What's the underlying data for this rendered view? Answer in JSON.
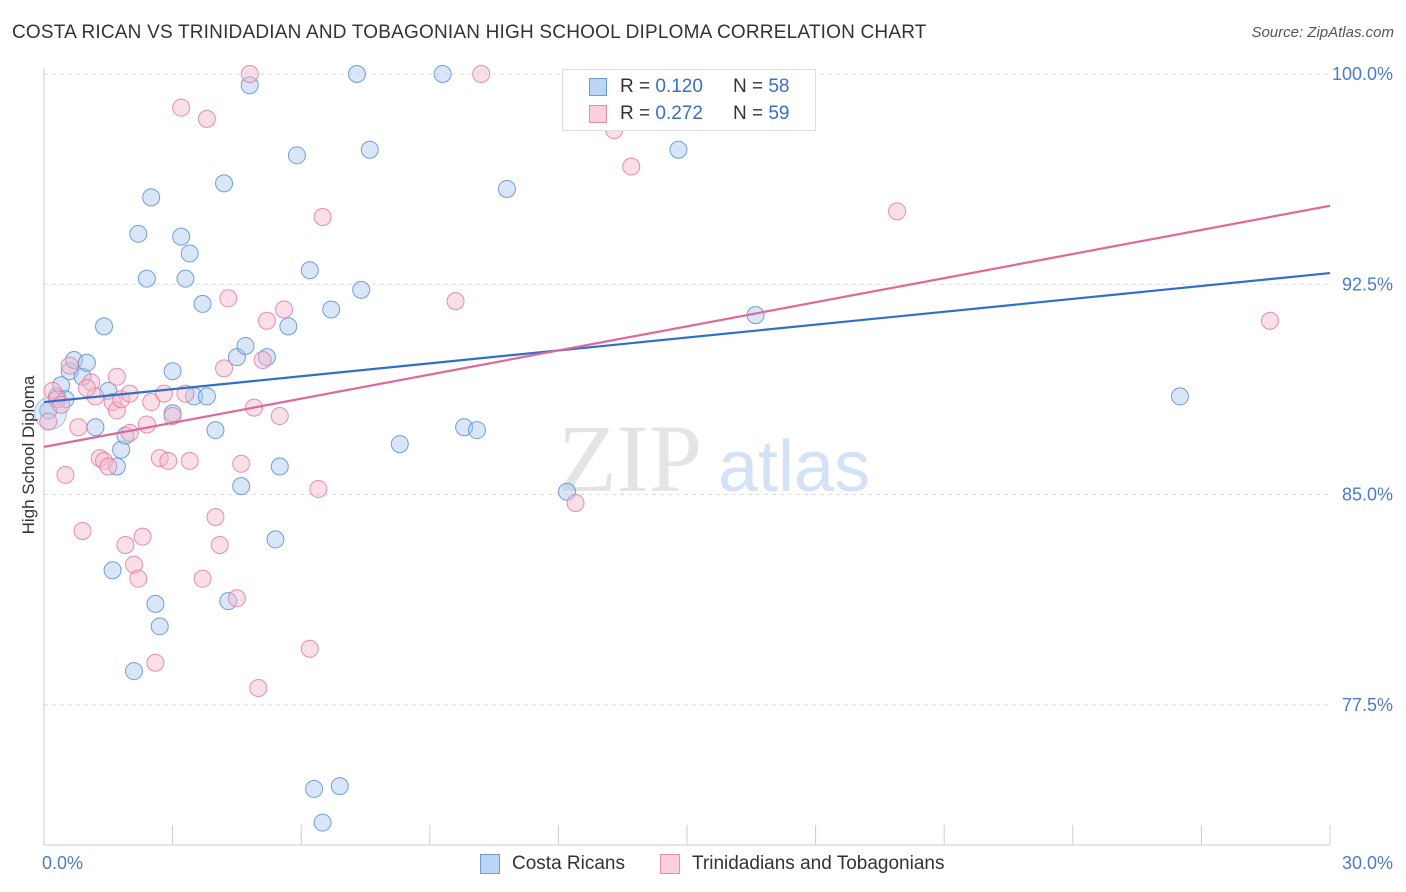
{
  "title": "COSTA RICAN VS TRINIDADIAN AND TOBAGONIAN HIGH SCHOOL DIPLOMA CORRELATION CHART",
  "source": "Source: ZipAtlas.com",
  "watermark": {
    "zip": "ZIP",
    "atlas": "atlas"
  },
  "legend": {
    "r_label": "R =",
    "n_label": "N =",
    "series": [
      {
        "r": "0.120",
        "n": "58"
      },
      {
        "r": "0.272",
        "n": "59"
      }
    ]
  },
  "bottom_legend": [
    "Costa Ricans",
    "Trinidadians and Tobagonians"
  ],
  "colors": {
    "blue_fill": "#a9c8f0",
    "blue_stroke": "#5b8fd6",
    "blue_line": "#2f6fcc",
    "pink_fill": "#f7b9cc",
    "pink_stroke": "#e27ca0",
    "pink_line": "#e06898",
    "tick_text": "#4a7cc7",
    "grid": "#dddddd"
  },
  "chart_data": {
    "type": "scatter",
    "title": "COSTA RICAN VS TRINIDADIAN AND TOBAGONIAN HIGH SCHOOL DIPLOMA CORRELATION CHART",
    "xlabel": "",
    "ylabel": "High School Diploma",
    "xlim": [
      0,
      30
    ],
    "ylim": [
      72.5,
      100.5
    ],
    "x_tick_labels": [
      "0.0%",
      "30.0%"
    ],
    "y_ticks": [
      77.5,
      85.0,
      92.5,
      100.0
    ],
    "y_tick_labels": [
      "77.5%",
      "85.0%",
      "92.5%",
      "100.0%"
    ],
    "grid": true,
    "series": [
      {
        "name": "Costa Ricans",
        "r": 0.12,
        "n": 58,
        "trend": {
          "x": [
            0,
            30
          ],
          "y": [
            88.3,
            92.9
          ]
        },
        "points": [
          [
            0.1,
            88.0
          ],
          [
            0.3,
            88.5
          ],
          [
            0.4,
            88.9
          ],
          [
            0.5,
            88.4
          ],
          [
            0.6,
            89.4
          ],
          [
            0.7,
            89.8
          ],
          [
            0.9,
            89.2
          ],
          [
            1.0,
            89.7
          ],
          [
            1.2,
            87.4
          ],
          [
            1.4,
            91.0
          ],
          [
            1.5,
            88.7
          ],
          [
            1.6,
            82.3
          ],
          [
            1.7,
            86.0
          ],
          [
            1.8,
            86.6
          ],
          [
            1.9,
            87.1
          ],
          [
            2.1,
            78.7
          ],
          [
            2.2,
            94.3
          ],
          [
            2.4,
            92.7
          ],
          [
            2.5,
            95.6
          ],
          [
            2.6,
            81.1
          ],
          [
            2.7,
            80.3
          ],
          [
            3.0,
            89.4
          ],
          [
            3.0,
            87.9
          ],
          [
            3.2,
            94.2
          ],
          [
            3.4,
            93.6
          ],
          [
            3.3,
            92.7
          ],
          [
            3.5,
            88.5
          ],
          [
            3.7,
            91.8
          ],
          [
            3.8,
            88.5
          ],
          [
            4.0,
            87.3
          ],
          [
            4.2,
            96.1
          ],
          [
            4.3,
            81.2
          ],
          [
            4.5,
            89.9
          ],
          [
            4.6,
            85.3
          ],
          [
            4.7,
            90.3
          ],
          [
            4.8,
            99.6
          ],
          [
            5.2,
            89.9
          ],
          [
            5.4,
            83.4
          ],
          [
            5.5,
            86.0
          ],
          [
            5.7,
            91.0
          ],
          [
            5.9,
            97.1
          ],
          [
            6.2,
            93.0
          ],
          [
            6.3,
            74.5
          ],
          [
            6.5,
            73.3
          ],
          [
            6.7,
            91.6
          ],
          [
            6.9,
            74.6
          ],
          [
            7.3,
            100.0
          ],
          [
            7.4,
            92.3
          ],
          [
            7.6,
            97.3
          ],
          [
            8.3,
            86.8
          ],
          [
            9.3,
            100.0
          ],
          [
            9.8,
            87.4
          ],
          [
            10.1,
            87.3
          ],
          [
            10.8,
            95.9
          ],
          [
            12.2,
            85.1
          ],
          [
            14.8,
            97.3
          ],
          [
            16.6,
            91.4
          ],
          [
            26.5,
            88.5
          ]
        ]
      },
      {
        "name": "Trinidadians and Tobagonians",
        "r": 0.272,
        "n": 59,
        "trend": {
          "x": [
            0,
            30
          ],
          "y": [
            86.7,
            95.3
          ]
        },
        "points": [
          [
            0.2,
            88.7
          ],
          [
            0.3,
            88.4
          ],
          [
            0.4,
            88.2
          ],
          [
            0.5,
            85.7
          ],
          [
            0.6,
            89.6
          ],
          [
            0.8,
            87.4
          ],
          [
            0.9,
            83.7
          ],
          [
            1.1,
            89.0
          ],
          [
            1.2,
            88.5
          ],
          [
            1.3,
            86.3
          ],
          [
            1.4,
            86.2
          ],
          [
            1.5,
            86.0
          ],
          [
            1.6,
            88.3
          ],
          [
            1.7,
            88.0
          ],
          [
            1.7,
            89.2
          ],
          [
            1.8,
            88.4
          ],
          [
            1.9,
            83.2
          ],
          [
            2.0,
            87.2
          ],
          [
            2.1,
            82.5
          ],
          [
            2.2,
            82.0
          ],
          [
            2.3,
            83.5
          ],
          [
            2.4,
            87.5
          ],
          [
            2.5,
            88.3
          ],
          [
            2.6,
            79.0
          ],
          [
            2.7,
            86.3
          ],
          [
            2.8,
            88.6
          ],
          [
            2.9,
            86.2
          ],
          [
            3.0,
            87.8
          ],
          [
            3.2,
            98.8
          ],
          [
            3.3,
            88.6
          ],
          [
            3.4,
            86.2
          ],
          [
            3.7,
            82.0
          ],
          [
            3.8,
            98.4
          ],
          [
            4.0,
            84.2
          ],
          [
            4.1,
            83.2
          ],
          [
            4.2,
            89.5
          ],
          [
            4.3,
            92.0
          ],
          [
            4.5,
            81.3
          ],
          [
            4.6,
            86.1
          ],
          [
            4.8,
            100.0
          ],
          [
            4.9,
            88.1
          ],
          [
            5.0,
            78.1
          ],
          [
            5.1,
            89.8
          ],
          [
            5.2,
            91.2
          ],
          [
            5.5,
            87.8
          ],
          [
            5.6,
            91.6
          ],
          [
            6.2,
            79.5
          ],
          [
            6.4,
            85.2
          ],
          [
            6.5,
            94.9
          ],
          [
            9.6,
            91.9
          ],
          [
            10.2,
            100.0
          ],
          [
            12.4,
            84.7
          ],
          [
            13.3,
            98.0
          ],
          [
            13.7,
            96.7
          ],
          [
            19.9,
            95.1
          ],
          [
            28.6,
            91.2
          ],
          [
            0.1,
            87.6
          ],
          [
            1.0,
            88.8
          ],
          [
            2.0,
            88.6
          ]
        ]
      }
    ]
  }
}
